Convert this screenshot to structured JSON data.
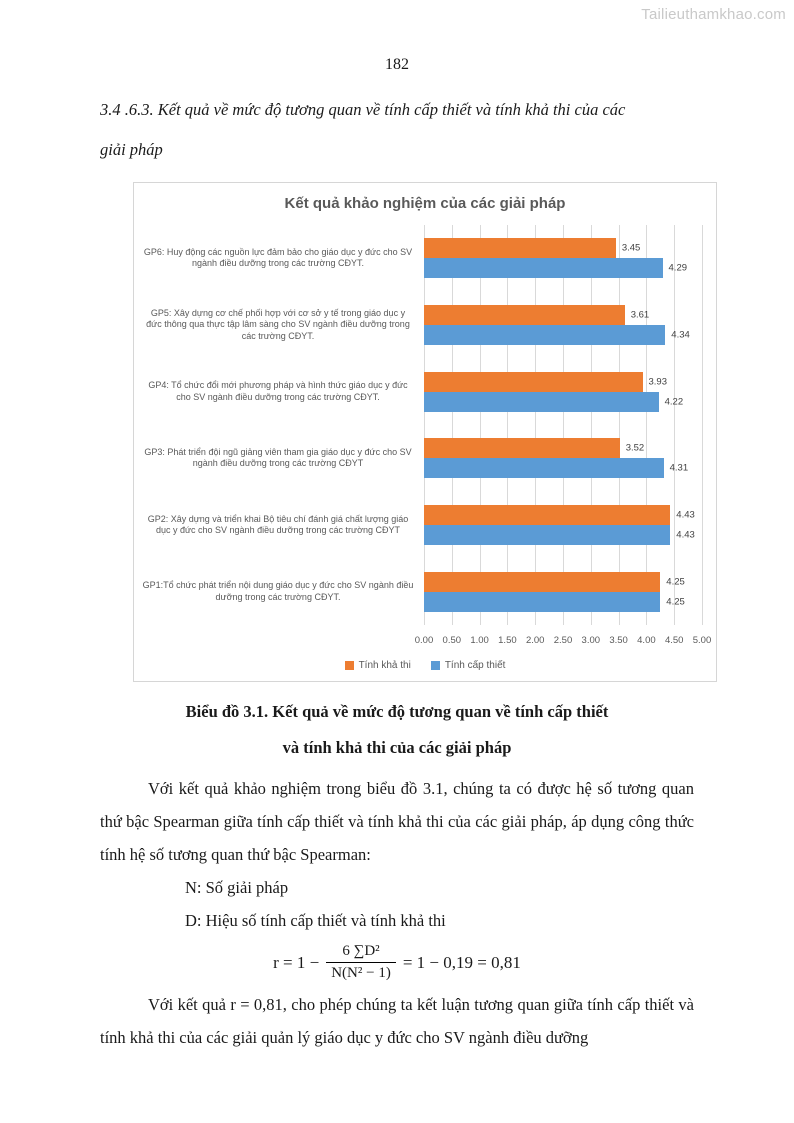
{
  "watermark": "Tailieuthamkhao.com",
  "page_number": "182",
  "heading": {
    "line1": "3.4 .6.3. Kết quả về mức độ tương quan về tính cấp thiết và tính khả thi của các",
    "line2": "giải pháp"
  },
  "chart_data": {
    "type": "bar",
    "orientation": "horizontal",
    "title": "Kết quả khảo nghiệm của các giải pháp",
    "categories": [
      "GP6:  Huy động các nguồn lực đảm bảo cho giáo dục y đức cho SV ngành điều dưỡng trong các trường CĐYT.",
      "GP5: Xây dựng cơ chế phối hợp với cơ sở y tế trong giáo dục y đức thông qua thực tập lâm sàng cho SV ngành điều dưỡng trong các trường CĐYT.",
      "GP4: Tổ chức đổi mới phương pháp và hình thức giáo dục y đức cho SV ngành điều dưỡng trong các trường CĐYT.",
      "GP3: Phát triển đội ngũ giảng viên tham gia giáo dục y đức cho SV ngành điều dưỡng trong các trường CĐYT",
      "GP2: Xây dựng và triển khai Bộ tiêu chí đánh giá chất lượng giáo dục y đức cho SV ngành điều dưỡng trong các trường CĐYT",
      "GP1:Tổ chức phát triển nội dung giáo dục y đức cho SV ngành điều dưỡng trong các trường CĐYT."
    ],
    "series": [
      {
        "name": "Tính khả thi",
        "color": "#ED7D31",
        "values": [
          3.45,
          3.61,
          3.93,
          3.52,
          4.43,
          4.25
        ]
      },
      {
        "name": "Tính cấp thiết",
        "color": "#5B9BD5",
        "values": [
          4.29,
          4.34,
          4.22,
          4.31,
          4.43,
          4.25
        ]
      }
    ],
    "xlim": [
      0,
      5
    ],
    "x_ticks": [
      "0.00",
      "0.50",
      "1.00",
      "1.50",
      "2.00",
      "2.50",
      "3.00",
      "3.50",
      "4.00",
      "4.50",
      "5.00"
    ],
    "grid": true,
    "legend_position": "bottom",
    "grid_color": "#d9d9d9"
  },
  "caption": {
    "line1": "Biểu đồ 3.1. Kết quả về mức độ tương quan về tính cấp thiết",
    "line2": "và tính khả thi của các giải pháp"
  },
  "body": {
    "paragraph1": "Với kết quả khảo nghiệm trong biểu đồ 3.1, chúng ta có được hệ số tương quan thứ bậc Spearman giữa tính cấp thiết và tính khả thi của các giải pháp, áp dụng công thức tính hệ số tương quan thứ bậc Spearman:",
    "def_n": "N: Số giải pháp",
    "def_d": "D: Hiệu số tính cấp thiết và tính khả thi",
    "paragraph2": "Với kết quả r = 0,81, cho phép chúng ta kết luận tương quan giữa tính cấp thiết và tính khả thi của các giải quản lý giáo dục y đức cho SV ngành điều dưỡng"
  },
  "formula": {
    "lhs": "r = 1 −",
    "numerator": "6 ∑D²",
    "denominator": "N(N² − 1)",
    "rhs": "= 1 − 0,19 = 0,81"
  }
}
